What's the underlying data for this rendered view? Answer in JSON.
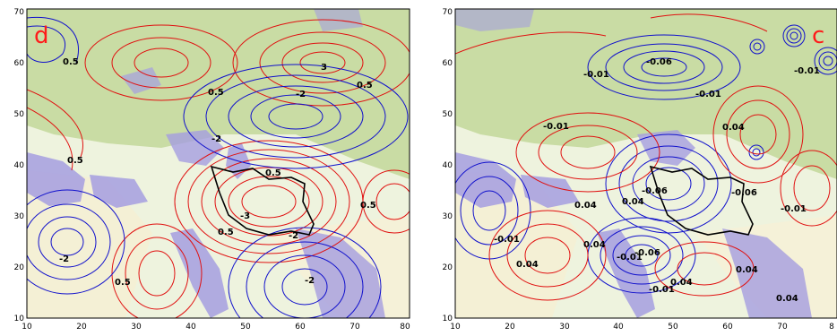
{
  "panels": [
    {
      "id": "d",
      "label": "d",
      "x_ticks": [
        "10",
        "20",
        "30",
        "40",
        "50",
        "60",
        "70",
        "80"
      ],
      "y_ticks": [
        "10",
        "20",
        "30",
        "40",
        "50",
        "60",
        "70"
      ],
      "contour_labels": [
        "0.5",
        "3",
        "0.5",
        "-2",
        "0.5",
        "-2",
        "0.5",
        "0.5",
        "-3",
        "0.5",
        "0.5",
        "-2",
        "-2",
        "0.5",
        "-2"
      ],
      "contour_colors": {
        "positive": "#e01010",
        "negative": "#1010cc",
        "boundary": "#000000"
      }
    },
    {
      "id": "c",
      "label": "c",
      "x_ticks": [
        "10",
        "20",
        "30",
        "40",
        "50",
        "60",
        "70",
        "8"
      ],
      "y_ticks": [
        "10",
        "20",
        "30",
        "40",
        "50",
        "60",
        "70"
      ],
      "contour_labels": [
        "-0.06",
        "-0.01",
        "-0.01",
        "-0.01",
        "-0.01",
        "0.04",
        "-0.06",
        "0.04",
        "-0.06",
        "-0.01",
        "-0.01",
        "0.04",
        "0.04",
        "0.04",
        "-0.01",
        "0.04",
        "-0.06",
        "-0.01",
        "0.04",
        "0.04"
      ],
      "contour_colors": {
        "positive": "#e01010",
        "negative": "#1010cc",
        "boundary": "#000000"
      }
    }
  ]
}
